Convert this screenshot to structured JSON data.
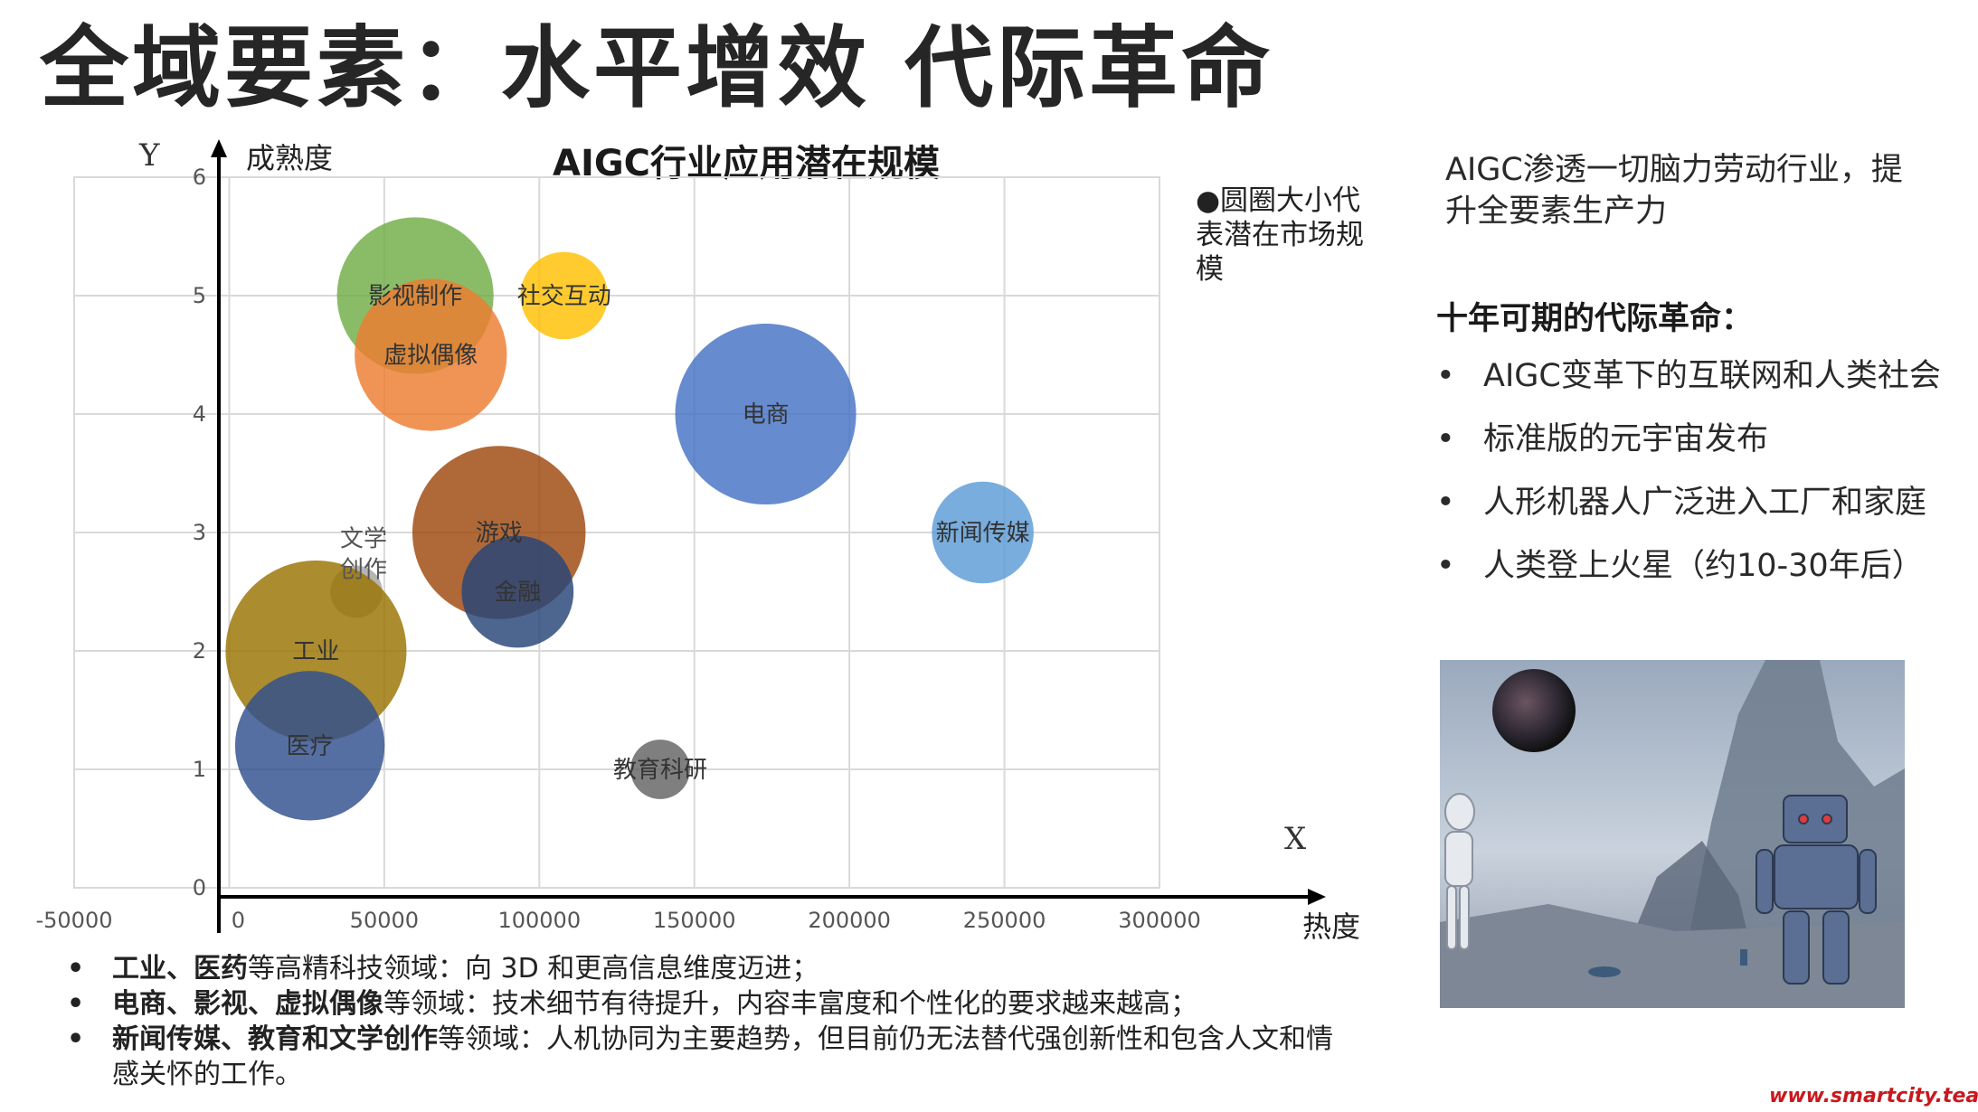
{
  "page_title": "全域要素：水平增效  代际革命",
  "chart_data": {
    "type": "bubble",
    "title": "AIGC行业应用潜在规模",
    "x_axis_letter": "X",
    "y_axis_letter": "Y",
    "xlabel": "热度",
    "ylabel": "成熟度",
    "xlim": [
      -50000,
      300000
    ],
    "ylim": [
      0,
      6
    ],
    "x_ticks": [
      "-50000",
      "0",
      "50000",
      "100000",
      "150000",
      "200000",
      "250000",
      "300000"
    ],
    "y_ticks": [
      "0",
      "1",
      "2",
      "3",
      "4",
      "5",
      "6"
    ],
    "grid": true,
    "legend_note": "●圆圈大小代表潜在市场规模",
    "series": [
      {
        "name": "影视制作",
        "x": 60000,
        "y": 5.0,
        "size": 9000,
        "color": "#70ad47"
      },
      {
        "name": "虚拟偶像",
        "x": 65000,
        "y": 4.5,
        "size": 8500,
        "color": "#ed7d31"
      },
      {
        "name": "社交互动",
        "x": 108000,
        "y": 5.0,
        "size": 2800,
        "color": "#ffc000"
      },
      {
        "name": "电商",
        "x": 173000,
        "y": 4.0,
        "size": 12000,
        "color": "#4472c4"
      },
      {
        "name": "新闻传媒",
        "x": 243000,
        "y": 3.0,
        "size": 3800,
        "color": "#5b9bd5"
      },
      {
        "name": "游戏",
        "x": 87000,
        "y": 3.0,
        "size": 11000,
        "color": "#9e480e"
      },
      {
        "name": "金融",
        "x": 93000,
        "y": 2.5,
        "size": 4600,
        "color": "#264478"
      },
      {
        "name": "文学创作",
        "x": 41000,
        "y": 2.5,
        "size": 1000,
        "color": "#a5a5a5"
      },
      {
        "name": "工业",
        "x": 28000,
        "y": 2.0,
        "size": 12000,
        "color": "#997300"
      },
      {
        "name": "医疗",
        "x": 26000,
        "y": 1.2,
        "size": 8200,
        "color": "#2f4f8f"
      },
      {
        "name": "教育科研",
        "x": 139000,
        "y": 1.0,
        "size": 1300,
        "color": "#636363"
      }
    ]
  },
  "sidebar": {
    "intro": "AIGC渗透一切脑力劳动行业，提升全要素生产力",
    "heading": "十年可期的代际革命：",
    "items": [
      "AIGC变革下的互联网和人类社会",
      "标准版的元宇宙发布",
      "人形机器人广泛进入工厂和家庭",
      "人类登上火星（约10-30年后）"
    ]
  },
  "notes": [
    {
      "bold": "工业、医药",
      "text": "等高精科技领域：向 3D 和更高信息维度迈进；"
    },
    {
      "bold": "电商、影视、虚拟偶像",
      "text": "等领域：技术细节有待提升，内容丰富度和个性化的要求越来越高；"
    },
    {
      "bold": "新闻传媒、教育和文学创作",
      "text": "等领域：人机协同为主要趋势，但目前仍无法替代强创新性和包含人文和情感关怀的工作。"
    }
  ],
  "watermark": "www.smartcity.team",
  "colors": {
    "title": "#262626",
    "grid": "#d9d9d9",
    "axis": "#000000",
    "watermark": "#c8191e"
  },
  "icons": {
    "illustration": "robots-planet-image"
  }
}
